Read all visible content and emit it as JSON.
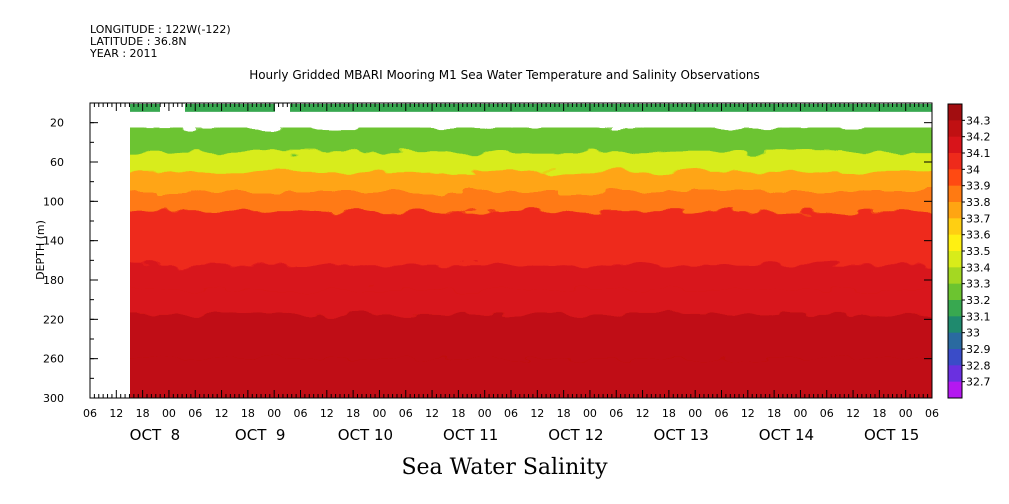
{
  "header": {
    "longitude": "LONGITUDE : 122W(-122)",
    "latitude": "LATITUDE : 36.8N",
    "year": "YEAR : 2011"
  },
  "title": "Hourly Gridded MBARI Mooring M1 Sea Water Temperature and Salinity Observations",
  "bottom_title": "Sea Water Salinity",
  "chart_data": {
    "type": "heatmap",
    "title": "Hourly Gridded MBARI Mooring M1 Sea Water Temperature and Salinity Observations",
    "xlabel": "",
    "ylabel": "DEPTH (m)",
    "variable": "Sea Water Salinity",
    "y_range": [
      300,
      0
    ],
    "y_ticks": [
      20,
      60,
      100,
      140,
      180,
      220,
      260,
      300
    ],
    "x_range_hours": [
      "OCT 7 06:00",
      "OCT 15 06:00"
    ],
    "x_hour_ticks": [
      "06",
      "12",
      "18",
      "00",
      "06",
      "12",
      "18",
      "00",
      "06",
      "12",
      "18",
      "00",
      "06",
      "12",
      "18",
      "00",
      "06",
      "12",
      "18",
      "00",
      "06",
      "12",
      "18",
      "00",
      "06",
      "12",
      "18",
      "00",
      "06",
      "12",
      "18",
      "00",
      "06"
    ],
    "x_date_labels": [
      "OCT  8",
      "OCT  9",
      "OCT 10",
      "OCT 11",
      "OCT 12",
      "OCT 13",
      "OCT 14",
      "OCT 15"
    ],
    "colorbar": {
      "labels": [
        "34.3",
        "34.2",
        "34.1",
        "34",
        "33.9",
        "33.8",
        "33.7",
        "33.6",
        "33.5",
        "33.4",
        "33.3",
        "33.2",
        "33.1",
        "33",
        "32.9",
        "32.8",
        "32.7"
      ],
      "colors": [
        "#a20d10",
        "#c01012",
        "#d8141a",
        "#ee2a1b",
        "#ff4a12",
        "#ff7a12",
        "#ffa512",
        "#ffcf12",
        "#fff012",
        "#d8ec1a",
        "#a4d822",
        "#6cc430",
        "#38a850",
        "#1f8a6e",
        "#2a6aa0",
        "#3a4cc8",
        "#6a30e0",
        "#b418f0"
      ],
      "range": [
        32.7,
        34.3
      ]
    },
    "salinity_by_depth": [
      {
        "depth": 10,
        "salinity": 33.2
      },
      {
        "depth": 40,
        "salinity": 33.3
      },
      {
        "depth": 60,
        "salinity": 33.5
      },
      {
        "depth": 80,
        "salinity": 33.7
      },
      {
        "depth": 100,
        "salinity": 33.85
      },
      {
        "depth": 120,
        "salinity": 33.95
      },
      {
        "depth": 150,
        "salinity": 34.0
      },
      {
        "depth": 180,
        "salinity": 34.05
      },
      {
        "depth": 200,
        "salinity": 34.1
      },
      {
        "depth": 230,
        "salinity": 34.15
      },
      {
        "depth": 250,
        "salinity": 34.2
      },
      {
        "depth": 270,
        "salinity": 34.15
      },
      {
        "depth": 300,
        "salinity": 34.15
      }
    ]
  }
}
